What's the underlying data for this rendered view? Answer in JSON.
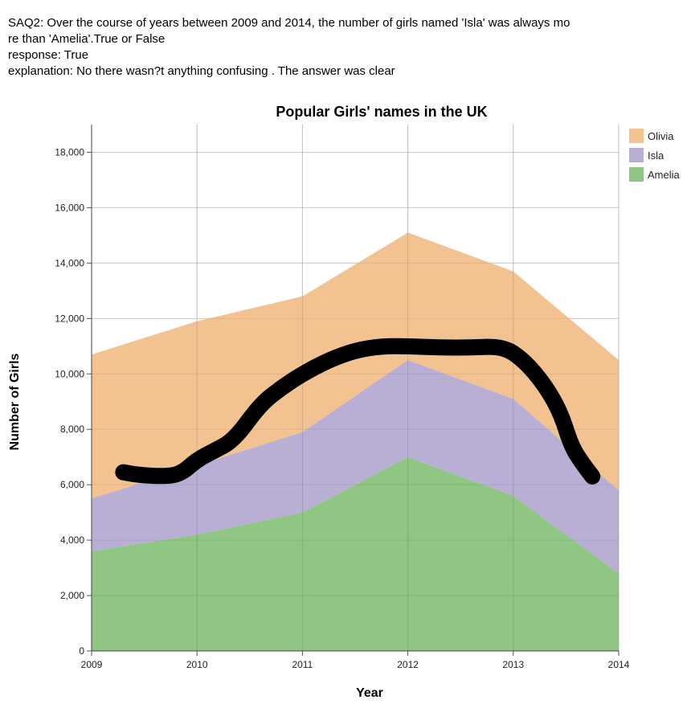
{
  "survey": {
    "question_line1": "SAQ2: Over the course of years between 2009 and 2014, the number of girls named 'Isla' was always mo",
    "question_line2": "re than 'Amelia'.True or False",
    "response": "response: True",
    "explanation": "explanation: No there wasn?t anything confusing . The answer was clear"
  },
  "chart_data": {
    "type": "area",
    "stacked": true,
    "title": "Popular Girls' names in the UK",
    "xlabel": "Year",
    "ylabel": "Number of Girls",
    "x": [
      2009,
      2010,
      2011,
      2012,
      2013,
      2014
    ],
    "x_ticks": [
      "2009",
      "2010",
      "2011",
      "2012",
      "2013",
      "2014"
    ],
    "ylim": [
      0,
      19000
    ],
    "y_ticks": [
      "0",
      "2,000",
      "4,000",
      "6,000",
      "8,000",
      "10,000",
      "12,000",
      "14,000",
      "16,000",
      "18,000"
    ],
    "y_tick_values": [
      0,
      2000,
      4000,
      6000,
      8000,
      10000,
      12000,
      14000,
      16000,
      18000
    ],
    "grid": true,
    "legend_position": "top-right",
    "series": [
      {
        "name": "Amelia",
        "color": "#8fc684",
        "values": [
          3600,
          4200,
          5000,
          7000,
          5600,
          2800
        ]
      },
      {
        "name": "Isla",
        "color": "#b9aed4",
        "values": [
          1900,
          2500,
          2900,
          3500,
          3500,
          3000
        ]
      },
      {
        "name": "Olivia",
        "color": "#f3c291",
        "values": [
          5200,
          5200,
          4900,
          4600,
          4600,
          4700
        ]
      }
    ],
    "legend_order": [
      "Olivia",
      "Isla",
      "Amelia"
    ],
    "annotation": {
      "description": "hand-drawn black scribble",
      "color": "#000000",
      "points": [
        [
          2009.3,
          6450
        ],
        [
          2009.45,
          6350
        ],
        [
          2009.7,
          6300
        ],
        [
          2009.85,
          6400
        ],
        [
          2010.0,
          6900
        ],
        [
          2010.15,
          7200
        ],
        [
          2010.35,
          7600
        ],
        [
          2010.6,
          8900
        ],
        [
          2010.8,
          9500
        ],
        [
          2011.0,
          10000
        ],
        [
          2011.25,
          10500
        ],
        [
          2011.5,
          10850
        ],
        [
          2011.75,
          11000
        ],
        [
          2012.0,
          11000
        ],
        [
          2012.3,
          10950
        ],
        [
          2012.6,
          10950
        ],
        [
          2012.9,
          11000
        ],
        [
          2013.1,
          10500
        ],
        [
          2013.3,
          9600
        ],
        [
          2013.45,
          8600
        ],
        [
          2013.55,
          7400
        ],
        [
          2013.65,
          6800
        ],
        [
          2013.75,
          6300
        ]
      ]
    }
  }
}
